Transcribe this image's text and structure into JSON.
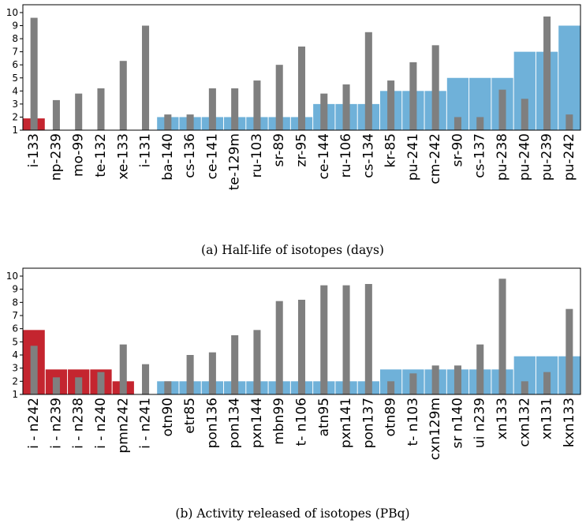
{
  "chart_data": [
    {
      "type": "bar",
      "caption": "(a) Half-life of isotopes (days)",
      "ylim": [
        1,
        10.6
      ],
      "yticks": [
        1,
        2,
        3,
        4,
        5,
        6,
        7,
        8,
        9,
        10
      ],
      "grid": false,
      "categories": [
        "i-133",
        "np-239",
        "mo-99",
        "te-132",
        "xe-133",
        "i-131",
        "ba-140",
        "cs-136",
        "ce-141",
        "te-129m",
        "ru-103",
        "sr-89",
        "zr-95",
        "ce-144",
        "ru-106",
        "cs-134",
        "kr-85",
        "pu-241",
        "cm-242",
        "sr-90",
        "cs-137",
        "pu-238",
        "pu-240",
        "pu-239",
        "pu-242"
      ],
      "bar_values": [
        1.9,
        0,
        0,
        0,
        0,
        0,
        2.0,
        2.0,
        2.0,
        2.0,
        2.0,
        2.0,
        2.0,
        3.0,
        3.0,
        3.0,
        4.0,
        4.0,
        4.0,
        5.0,
        5.0,
        5.0,
        7.0,
        7.0,
        9.0
      ],
      "bar_groups": [
        "red",
        "red",
        "red",
        "red",
        "red",
        "red",
        "blue",
        "blue",
        "blue",
        "blue",
        "blue",
        "blue",
        "blue",
        "blue",
        "blue",
        "blue",
        "blue",
        "blue",
        "blue",
        "blue",
        "blue",
        "blue",
        "blue",
        "blue",
        "blue"
      ],
      "overlay_values": [
        9.6,
        3.3,
        3.8,
        4.2,
        6.3,
        9.0,
        2.2,
        2.2,
        4.2,
        4.2,
        4.8,
        6.0,
        7.4,
        3.8,
        4.5,
        8.5,
        4.8,
        6.2,
        7.5,
        2.0,
        2.0,
        4.1,
        3.4,
        9.7,
        2.2
      ],
      "colors": {
        "red": "#c4252f",
        "blue": "#6fb1d9",
        "overlay": "#7f7f7f"
      }
    },
    {
      "type": "bar",
      "caption": "(b) Activity released of isotopes (PBq)",
      "ylim": [
        1,
        10.6
      ],
      "yticks": [
        1,
        2,
        3,
        4,
        5,
        6,
        7,
        8,
        9,
        10
      ],
      "grid": false,
      "categories": [
        "i - n242",
        "i - n239",
        "i - n238",
        "i - n240",
        "pmn242",
        "i - n241",
        "otn90",
        "etr85",
        "pon136",
        "pon134",
        "pxn144",
        "mbn99",
        "t- n106",
        "atn95",
        "pxn141",
        "pon137",
        "otn89",
        "t- n103",
        "cxn129m",
        "sr n140",
        "ui n239",
        "xn133",
        "cxn132",
        "xn131",
        "kxn133"
      ],
      "bar_values": [
        5.9,
        2.9,
        2.9,
        2.9,
        2.0,
        0,
        2.0,
        2.0,
        2.0,
        2.0,
        2.0,
        2.0,
        2.0,
        2.0,
        2.0,
        2.0,
        2.9,
        2.9,
        2.9,
        2.9,
        2.9,
        2.9,
        3.9,
        3.9,
        3.9
      ],
      "bar_groups": [
        "red",
        "red",
        "red",
        "red",
        "red",
        "red",
        "blue",
        "blue",
        "blue",
        "blue",
        "blue",
        "blue",
        "blue",
        "blue",
        "blue",
        "blue",
        "blue",
        "blue",
        "blue",
        "blue",
        "blue",
        "blue",
        "blue",
        "blue",
        "blue"
      ],
      "overlay_values": [
        4.7,
        2.3,
        2.3,
        2.7,
        4.8,
        3.3,
        2.0,
        4.0,
        4.2,
        5.5,
        5.9,
        8.1,
        8.2,
        9.3,
        9.3,
        9.4,
        2.0,
        2.6,
        3.2,
        3.2,
        4.8,
        9.8,
        2.0,
        2.7,
        7.5
      ],
      "colors": {
        "red": "#c4252f",
        "blue": "#6fb1d9",
        "overlay": "#7f7f7f"
      }
    }
  ]
}
